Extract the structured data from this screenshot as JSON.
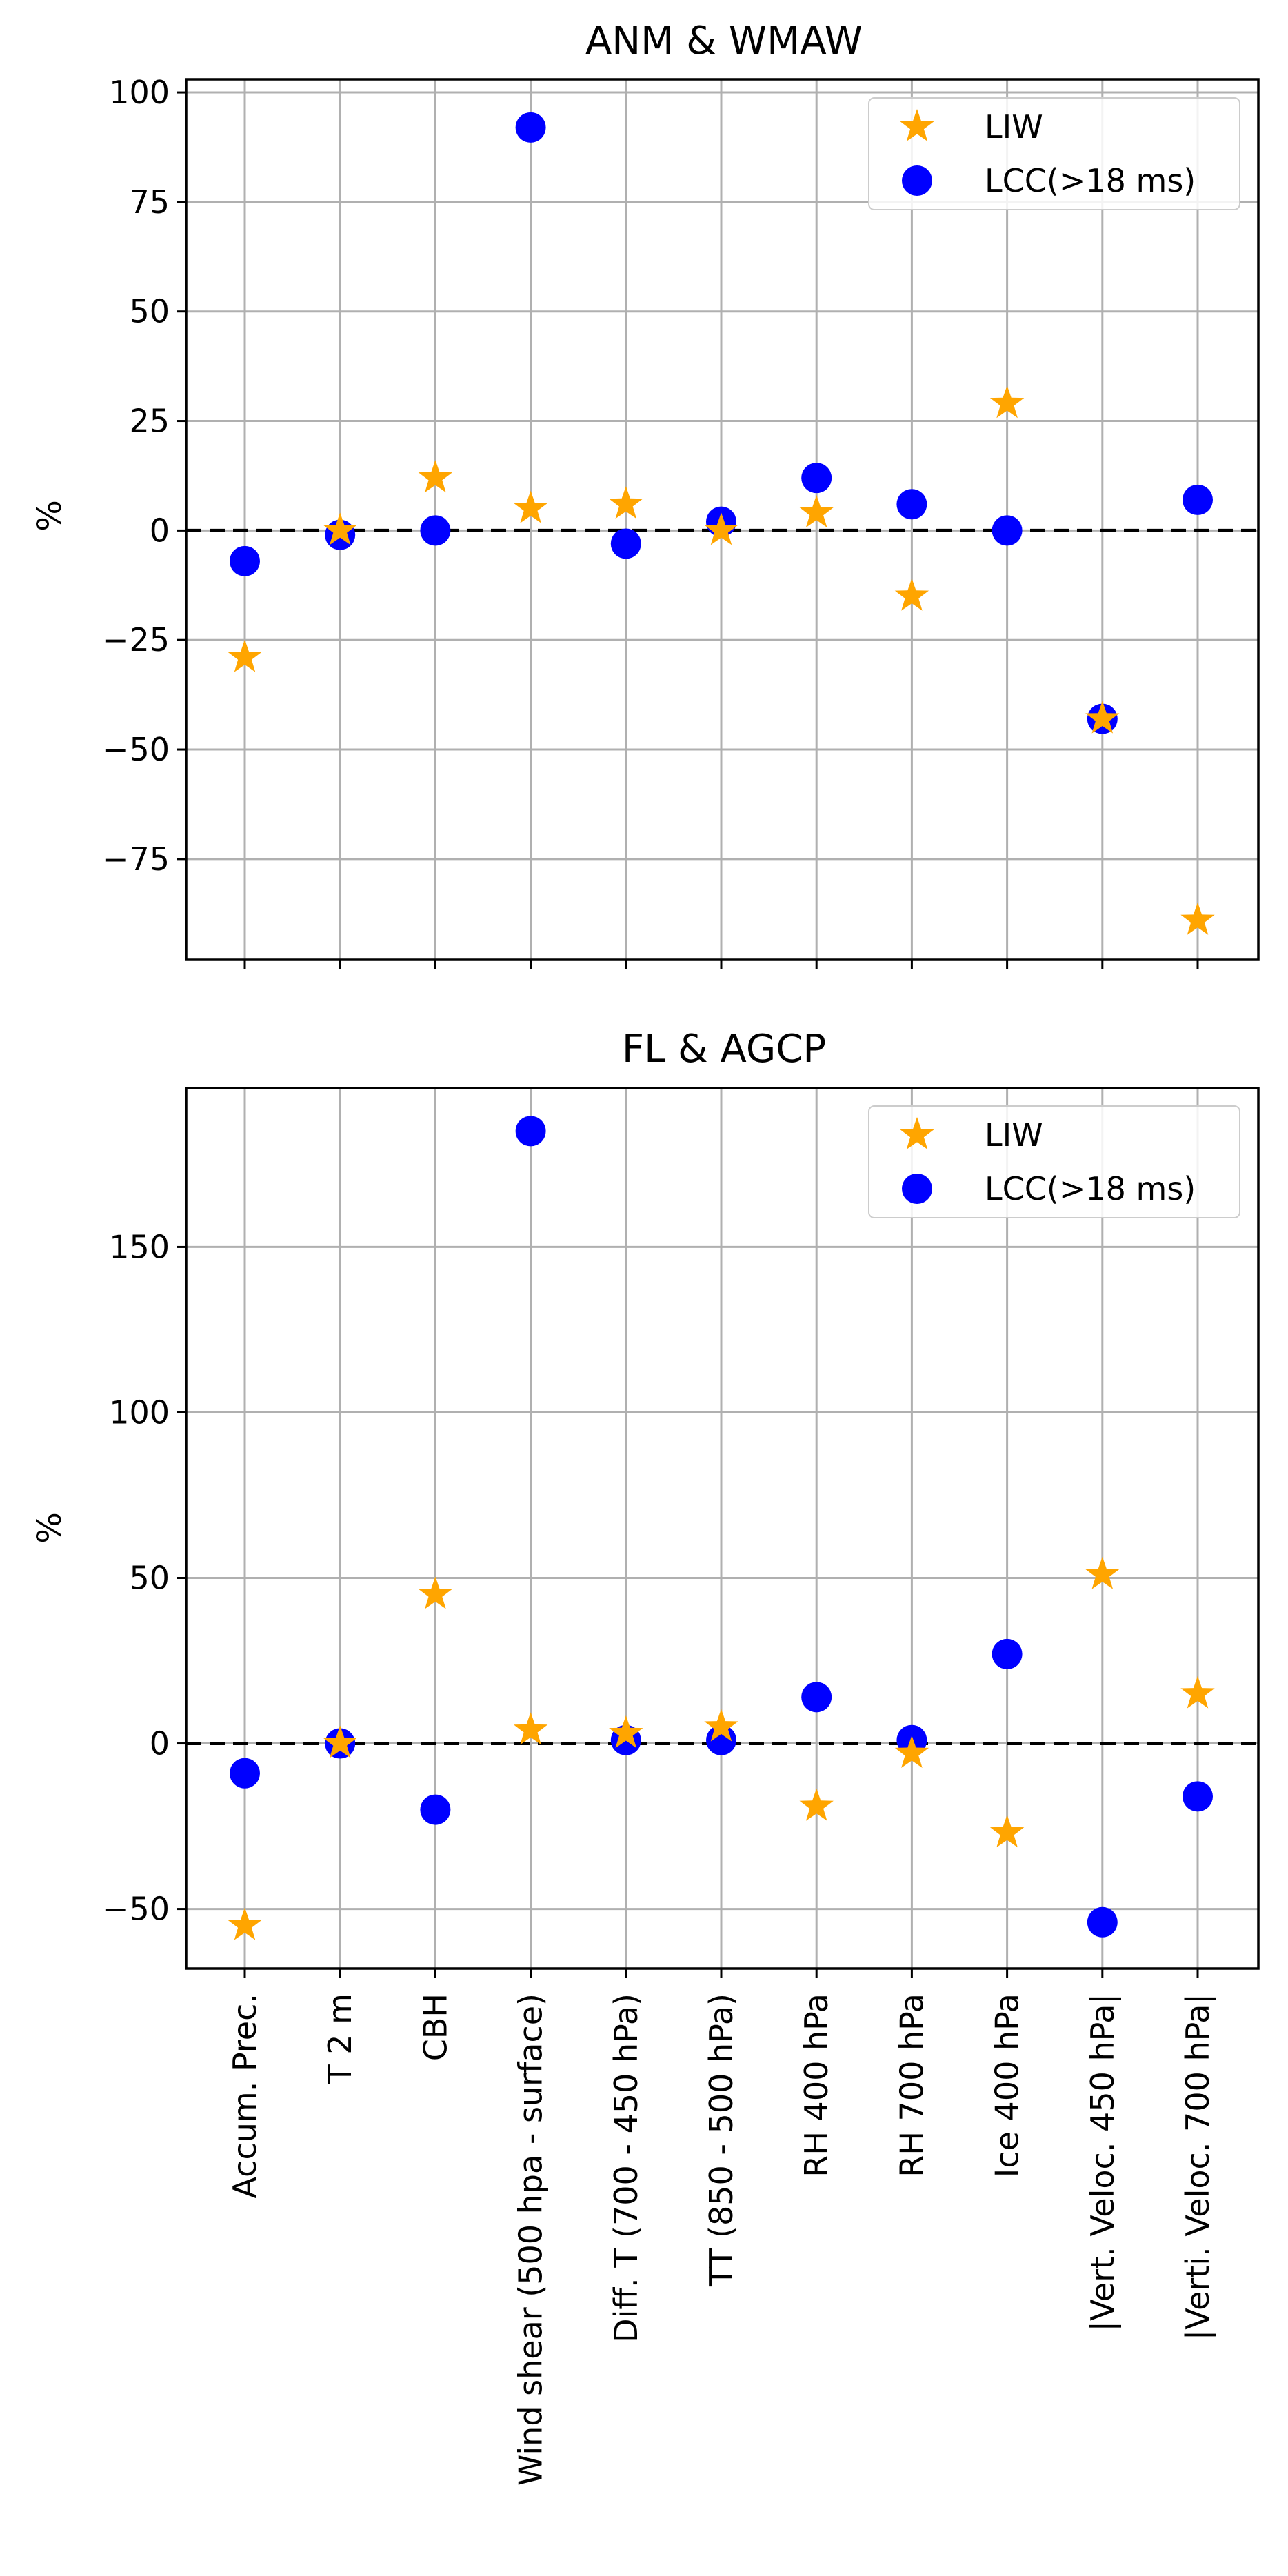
{
  "colors": {
    "liw": "#ffa500",
    "lcc": "#0000ff",
    "grid": "#b0b0b0",
    "zero_line": "#000000"
  },
  "categories": [
    "Accum. Prec.",
    "T 2 m",
    "CBH",
    "Wind shear (500 hpa - surface)",
    "Diff. T (700 - 450 hPa)",
    "TT (850 - 500 hPa)",
    "RH 400 hPa",
    "RH 700 hPa",
    "Ice 400 hPa",
    "|Vert. Veloc. 450 hPa|",
    "|Verti. Veloc. 700 hPa|"
  ],
  "chart_data": [
    {
      "type": "scatter",
      "title": "ANM & WMAW",
      "ylabel": "%",
      "xlabel": "",
      "ylim": [
        -98,
        103
      ],
      "yticks": [
        -75,
        -50,
        -25,
        0,
        25,
        50,
        75,
        100
      ],
      "grid": true,
      "legend": "top-right",
      "zero_line": true,
      "series": [
        {
          "name": "LIW",
          "marker": "star",
          "values": [
            -29,
            0,
            12,
            5,
            6,
            0,
            4,
            -15,
            29,
            -43,
            -89
          ]
        },
        {
          "name": "LCC(>18 ms)",
          "marker": "circle",
          "values": [
            -7,
            -1,
            0,
            92,
            -3,
            2,
            12,
            6,
            0,
            -43,
            7
          ]
        }
      ]
    },
    {
      "type": "scatter",
      "title": "FL & AGCP",
      "ylabel": "%",
      "xlabel": "",
      "ylim": [
        -68,
        198
      ],
      "yticks": [
        -50,
        0,
        50,
        100,
        150
      ],
      "grid": true,
      "legend": "top-right",
      "zero_line": true,
      "series": [
        {
          "name": "LIW",
          "marker": "star",
          "values": [
            -55,
            0,
            45,
            4,
            3,
            5,
            -19,
            -3,
            -27,
            51,
            15
          ]
        },
        {
          "name": "LCC(>18 ms)",
          "marker": "circle",
          "values": [
            -9,
            0,
            -20,
            185,
            1,
            1,
            14,
            1,
            27,
            -54,
            -16
          ]
        }
      ]
    }
  ]
}
